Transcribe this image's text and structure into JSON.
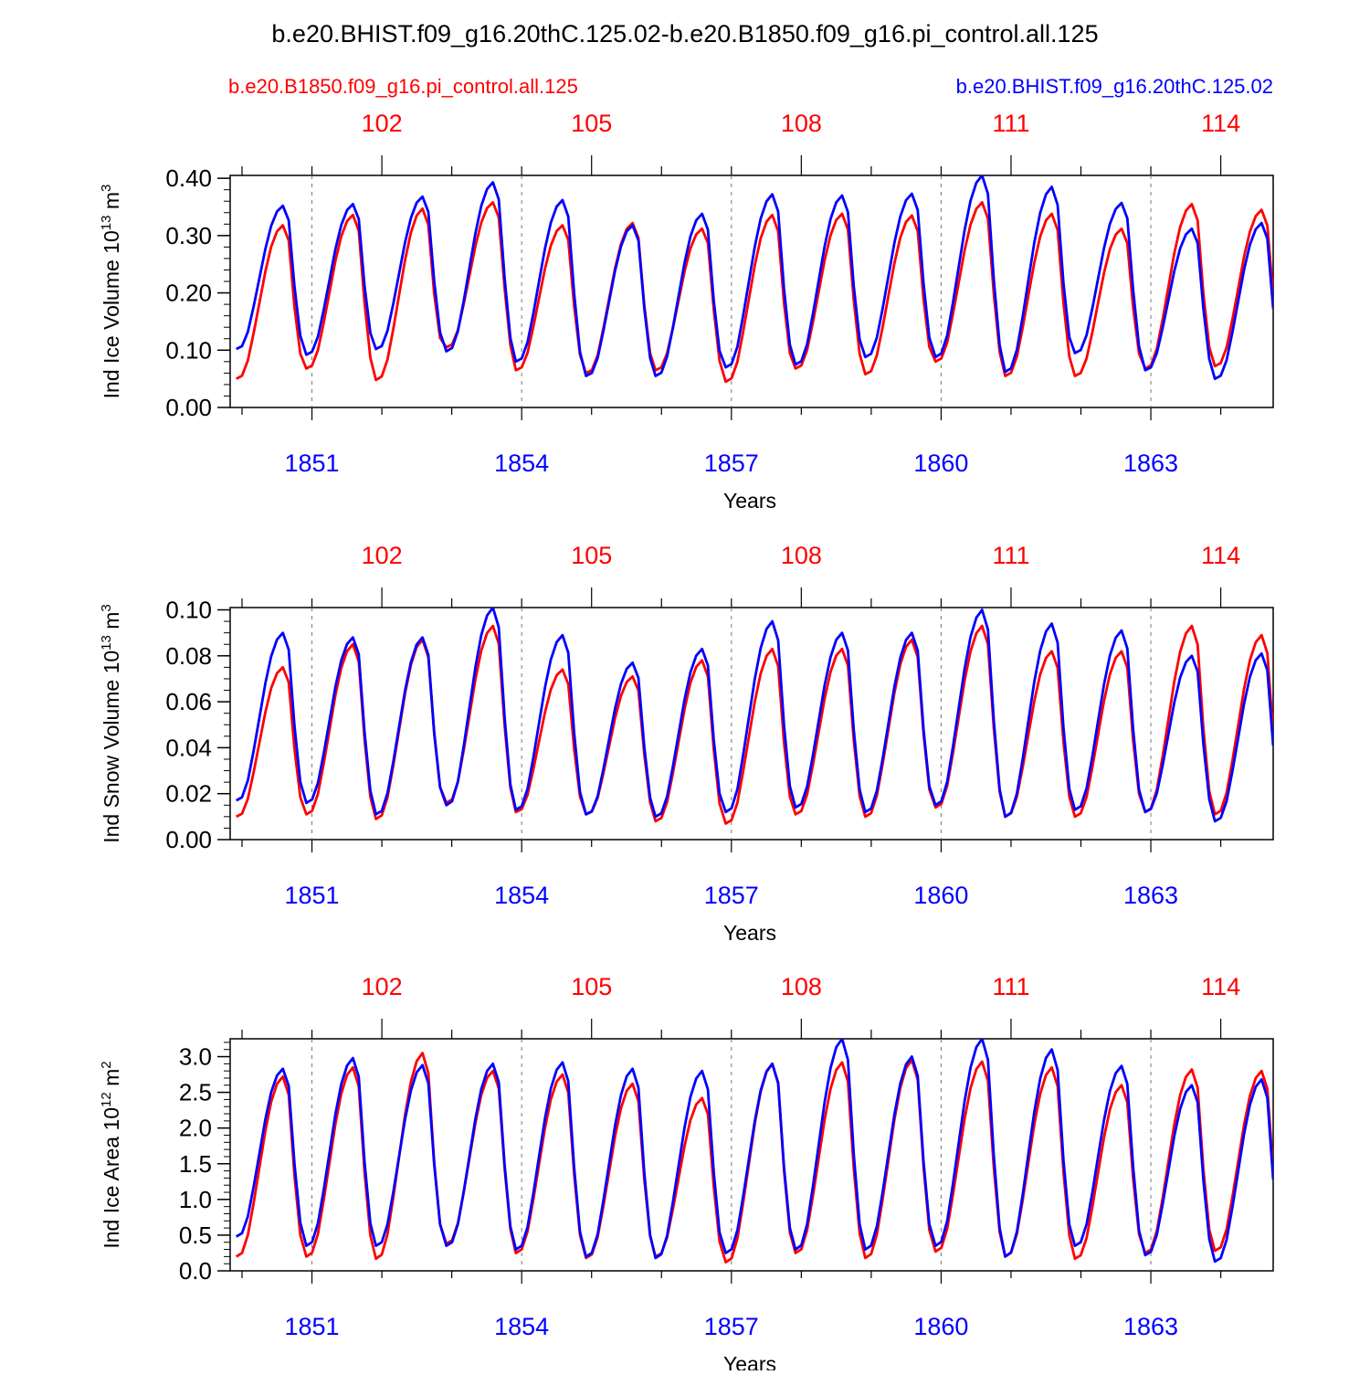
{
  "title": "b.e20.BHIST.f09_g16.20thC.125.02-b.e20.B1850.f09_g16.pi_control.all.125",
  "case_left": "b.e20.B1850.f09_g16.pi_control.all.125",
  "case_right": "b.e20.BHIST.f09_g16.20thC.125.02",
  "colors": {
    "control": "#ff0000",
    "hist": "#0000ff",
    "axis": "#000000"
  },
  "chart_data": [
    {
      "type": "line",
      "ylabel_main": "Ind Ice Volume 10",
      "ylabel_exp": "13",
      "ylabel_unit": " m",
      "ylabel_unit_exp": "3",
      "xlabel": "Years",
      "ylim": [
        0,
        0.405
      ],
      "yticks": [
        "0.00",
        "0.10",
        "0.20",
        "0.30",
        "0.40"
      ],
      "ytick_values": [
        0,
        0.1,
        0.2,
        0.3,
        0.4
      ],
      "ymin_step": 0.02,
      "xlim": [
        1849.83,
        1864.75
      ],
      "bottom_ticks": [
        "1851",
        "1854",
        "1857",
        "1860",
        "1863"
      ],
      "bottom_tick_values": [
        1851,
        1854,
        1857,
        1860,
        1863
      ],
      "top_ticks": [
        "102",
        "105",
        "108",
        "111",
        "114"
      ],
      "top_tick_values": [
        1852,
        1855,
        1858,
        1861,
        1864
      ],
      "series": [
        {
          "name": "b.e20.B1850.f09_g16.pi_control.all.125",
          "color": "#ff0000",
          "peaks": [
            0.318,
            0.336,
            0.347,
            0.358,
            0.318,
            0.322,
            0.312,
            0.336,
            0.338,
            0.335,
            0.358,
            0.338,
            0.312,
            0.355,
            0.345
          ],
          "troughs": [
            0.05,
            0.068,
            0.048,
            0.105,
            0.065,
            0.06,
            0.065,
            0.045,
            0.068,
            0.058,
            0.08,
            0.055,
            0.055,
            0.068,
            0.072
          ]
        },
        {
          "name": "b.e20.BHIST.f09_g16.20thC.125.02",
          "color": "#0000ff",
          "peaks": [
            0.352,
            0.355,
            0.368,
            0.393,
            0.362,
            0.318,
            0.338,
            0.372,
            0.37,
            0.373,
            0.405,
            0.385,
            0.357,
            0.312,
            0.322
          ],
          "troughs": [
            0.102,
            0.092,
            0.102,
            0.098,
            0.08,
            0.055,
            0.055,
            0.07,
            0.075,
            0.088,
            0.088,
            0.062,
            0.095,
            0.065,
            0.05
          ]
        }
      ]
    },
    {
      "type": "line",
      "ylabel_main": "Ind Snow Volume 10",
      "ylabel_exp": "13",
      "ylabel_unit": " m",
      "ylabel_unit_exp": "3",
      "xlabel": "Years",
      "ylim": [
        0,
        0.101
      ],
      "yticks": [
        "0.00",
        "0.02",
        "0.04",
        "0.06",
        "0.08",
        "0.10"
      ],
      "ytick_values": [
        0,
        0.02,
        0.04,
        0.06,
        0.08,
        0.1
      ],
      "ymin_step": 0.005,
      "xlim": [
        1849.83,
        1864.75
      ],
      "bottom_ticks": [
        "1851",
        "1854",
        "1857",
        "1860",
        "1863"
      ],
      "bottom_tick_values": [
        1851,
        1854,
        1857,
        1860,
        1863
      ],
      "top_ticks": [
        "102",
        "105",
        "108",
        "111",
        "114"
      ],
      "top_tick_values": [
        1852,
        1855,
        1858,
        1861,
        1864
      ],
      "series": [
        {
          "name": "b.e20.B1850.f09_g16.pi_control.all.125",
          "color": "#ff0000",
          "peaks": [
            0.075,
            0.085,
            0.087,
            0.093,
            0.074,
            0.071,
            0.078,
            0.083,
            0.083,
            0.087,
            0.093,
            0.082,
            0.082,
            0.093,
            0.089
          ],
          "troughs": [
            0.01,
            0.011,
            0.009,
            0.016,
            0.012,
            0.011,
            0.008,
            0.007,
            0.011,
            0.01,
            0.014,
            0.01,
            0.01,
            0.012,
            0.011
          ]
        },
        {
          "name": "b.e20.BHIST.f09_g16.20thC.125.02",
          "color": "#0000ff",
          "peaks": [
            0.09,
            0.088,
            0.088,
            0.101,
            0.089,
            0.077,
            0.083,
            0.095,
            0.09,
            0.09,
            0.1,
            0.094,
            0.091,
            0.08,
            0.081
          ],
          "troughs": [
            0.017,
            0.016,
            0.011,
            0.015,
            0.013,
            0.011,
            0.01,
            0.012,
            0.014,
            0.012,
            0.015,
            0.01,
            0.013,
            0.012,
            0.008
          ]
        }
      ]
    },
    {
      "type": "line",
      "ylabel_main": "Ind Ice Area 10",
      "ylabel_exp": "12",
      "ylabel_unit": " m",
      "ylabel_unit_exp": "2",
      "xlabel": "Years",
      "ylim": [
        0,
        3.25
      ],
      "yticks": [
        "0.0",
        "0.5",
        "1.0",
        "1.5",
        "2.0",
        "2.5",
        "3.0"
      ],
      "ytick_values": [
        0,
        0.5,
        1,
        1.5,
        2,
        2.5,
        3
      ],
      "ymin_step": 0.1,
      "xlim": [
        1849.83,
        1864.75
      ],
      "bottom_ticks": [
        "1851",
        "1854",
        "1857",
        "1860",
        "1863"
      ],
      "bottom_tick_values": [
        1851,
        1854,
        1857,
        1860,
        1863
      ],
      "top_ticks": [
        "102",
        "105",
        "108",
        "111",
        "114"
      ],
      "top_tick_values": [
        1852,
        1855,
        1858,
        1861,
        1864
      ],
      "series": [
        {
          "name": "b.e20.B1850.f09_g16.pi_control.all.125",
          "color": "#ff0000",
          "peaks": [
            2.72,
            2.85,
            3.05,
            2.8,
            2.75,
            2.62,
            2.42,
            2.9,
            2.92,
            2.95,
            2.93,
            2.85,
            2.6,
            2.82,
            2.8
          ],
          "troughs": [
            0.2,
            0.2,
            0.17,
            0.38,
            0.25,
            0.18,
            0.2,
            0.12,
            0.25,
            0.18,
            0.27,
            0.2,
            0.17,
            0.25,
            0.28
          ]
        },
        {
          "name": "b.e20.BHIST.f09_g16.20thC.125.02",
          "color": "#0000ff",
          "peaks": [
            2.83,
            2.98,
            2.88,
            2.9,
            2.92,
            2.83,
            2.8,
            2.9,
            3.25,
            3.0,
            3.25,
            3.1,
            2.87,
            2.6,
            2.68
          ],
          "troughs": [
            0.48,
            0.35,
            0.35,
            0.35,
            0.3,
            0.2,
            0.18,
            0.25,
            0.3,
            0.3,
            0.35,
            0.2,
            0.35,
            0.22,
            0.13
          ]
        }
      ]
    }
  ]
}
